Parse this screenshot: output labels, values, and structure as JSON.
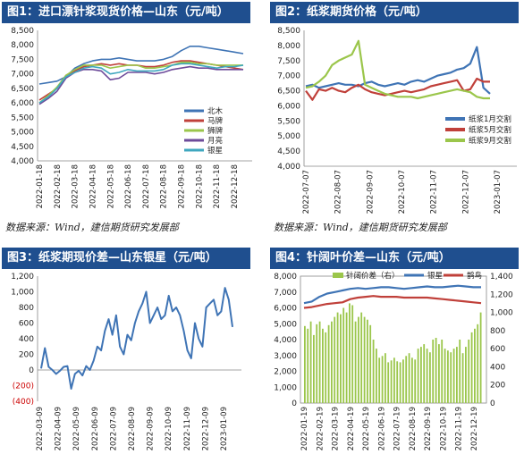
{
  "titles": {
    "p1": "图1：进口漂针浆现货价格—山东（元/吨）",
    "p2": "图2：纸浆期货价格（元/吨）",
    "p3": "图3：纸浆期现价差—山东银星（元/吨）",
    "p4": "图4：针阔叶价差—山东（元/吨）"
  },
  "sources": {
    "p1": "数据来源：Wind，建信期货研究发展部",
    "p2": "数据来源：Wind，建信期货研究发展部"
  },
  "colors": {
    "title_bg": "#1f4f8f",
    "blue": "#3f74b5",
    "red": "#c0403a",
    "green": "#9bc64b",
    "purple": "#6d4b9a",
    "teal": "#3fa7bf"
  },
  "chart_data": [
    {
      "id": "p1",
      "type": "line",
      "ylim": [
        4000,
        8500
      ],
      "yticks": [
        "4,000",
        "4,500",
        "5,000",
        "5,500",
        "6,000",
        "6,500",
        "7,000",
        "7,500",
        "8,000",
        "8,500"
      ],
      "xticks": [
        "2022-01-18",
        "2022-02-18",
        "2022-03-18",
        "2022-04-18",
        "2022-05-18",
        "2022-06-18",
        "2022-07-18",
        "2022-08-18",
        "2022-09-18",
        "2022-10-18",
        "2022-11-18",
        "2022-12-18"
      ],
      "series": [
        {
          "name": "北木",
          "color": "#3f74b5",
          "values": [
            6650,
            6700,
            6750,
            6900,
            7200,
            7350,
            7450,
            7500,
            7500,
            7550,
            7500,
            7450,
            7450,
            7450,
            7500,
            7600,
            7800,
            7950,
            7950,
            7900,
            7850,
            7800,
            7750,
            7700
          ]
        },
        {
          "name": "马牌",
          "color": "#c0403a",
          "values": [
            6100,
            6300,
            6500,
            6950,
            7100,
            7250,
            7300,
            7350,
            7300,
            7350,
            7300,
            7300,
            7250,
            7250,
            7300,
            7400,
            7450,
            7450,
            7400,
            7350,
            7300,
            7250,
            7200,
            7150
          ]
        },
        {
          "name": "狮牌",
          "color": "#9bc64b",
          "values": [
            6000,
            6250,
            6550,
            6950,
            7150,
            7300,
            7300,
            7300,
            7200,
            7250,
            7300,
            7300,
            7200,
            7200,
            7250,
            7300,
            7400,
            7400,
            7350,
            7350,
            7300,
            7300,
            7300,
            7300
          ]
        },
        {
          "name": "月亮",
          "color": "#6d4b9a",
          "values": [
            5950,
            6150,
            6400,
            6850,
            7050,
            7150,
            7150,
            7100,
            6800,
            6850,
            7050,
            7050,
            7050,
            7000,
            7050,
            7150,
            7200,
            7250,
            7200,
            7200,
            7150,
            7150,
            7150,
            7150
          ]
        },
        {
          "name": "银星",
          "color": "#3fa7bf",
          "values": [
            6000,
            6200,
            6500,
            6900,
            7050,
            7200,
            7250,
            7200,
            7000,
            7050,
            7150,
            7100,
            7100,
            7100,
            7150,
            7300,
            7350,
            7350,
            7300,
            7250,
            7200,
            7250,
            7250,
            7300
          ]
        }
      ]
    },
    {
      "id": "p2",
      "type": "line",
      "ylim": [
        4000,
        8500
      ],
      "yticks": [
        "4,000",
        "4,500",
        "5,000",
        "5,500",
        "6,000",
        "6,500",
        "7,000",
        "7,500",
        "8,000",
        "8,500"
      ],
      "xticks": [
        "2022-07-07",
        "2022-08-07",
        "2022-09-07",
        "2022-10-07",
        "2022-11-07",
        "2022-12-07",
        "2023-01-07"
      ],
      "series": [
        {
          "name": "纸浆1月交割",
          "color": "#3f74b5",
          "values": [
            6650,
            6700,
            6600,
            6650,
            6700,
            6750,
            6700,
            6700,
            6650,
            6750,
            6800,
            6700,
            6650,
            6700,
            6750,
            6700,
            6800,
            6850,
            6800,
            6900,
            7000,
            7050,
            7100,
            7200,
            7250,
            7400,
            7950,
            6600,
            6400
          ]
        },
        {
          "name": "纸浆5月交割",
          "color": "#c0403a",
          "values": [
            6500,
            6200,
            6550,
            6500,
            6600,
            6500,
            6450,
            6600,
            6700,
            6550,
            6450,
            6400,
            6350,
            6400,
            6450,
            6500,
            6450,
            6500,
            6550,
            6650,
            6700,
            6750,
            6800,
            6850,
            6500,
            6550,
            6900,
            6800,
            6800
          ]
        },
        {
          "name": "纸浆9月交割",
          "color": "#9bc64b",
          "values": [
            6600,
            6650,
            6800,
            7000,
            7350,
            7500,
            7600,
            7700,
            8150,
            6700,
            6600,
            6500,
            6400,
            6350,
            6300,
            6300,
            6300,
            6250,
            6300,
            6350,
            6400,
            6450,
            6500,
            6550,
            6500,
            6450,
            6300,
            6250,
            6250
          ]
        }
      ]
    },
    {
      "id": "p3",
      "type": "line",
      "ylim": [
        -400,
        1200
      ],
      "yticks": [
        "(400)",
        "(200)",
        "0",
        "200",
        "400",
        "600",
        "800",
        "1,000",
        "1,200"
      ],
      "xticks": [
        "2022-03-09",
        "2022-04-09",
        "2022-05-09",
        "2022-06-09",
        "2022-07-09",
        "2022-08-09",
        "2022-09-09",
        "2022-10-09",
        "2022-11-09",
        "2022-12-09",
        "2023-01-09"
      ],
      "series": [
        {
          "name": "期现价差",
          "color": "#3f74b5",
          "values": [
            20,
            280,
            40,
            0,
            -50,
            -10,
            40,
            50,
            -240,
            -50,
            -10,
            -70,
            50,
            0,
            120,
            300,
            250,
            500,
            650,
            450,
            700,
            300,
            200,
            450,
            380,
            600,
            750,
            850,
            1000,
            600,
            700,
            800,
            650,
            700,
            950,
            750,
            800,
            700,
            500,
            250,
            150,
            600,
            400,
            300,
            800,
            850,
            900,
            700,
            750,
            1050,
            900,
            550
          ]
        }
      ]
    },
    {
      "id": "p4",
      "type": "bar+line",
      "ylim_left": [
        0,
        8000
      ],
      "ylim_right": [
        0,
        1400
      ],
      "yticks_left": [
        "0",
        "1,000",
        "2,000",
        "3,000",
        "4,000",
        "5,000",
        "6,000",
        "7,000",
        "8,000"
      ],
      "yticks_right": [
        "0",
        "200",
        "400",
        "600",
        "800",
        "1,000",
        "1,200",
        "1,400"
      ],
      "xticks": [
        "2022-01-19",
        "2022-02-19",
        "2022-03-19",
        "2022-04-19",
        "2022-05-19",
        "2022-06-19",
        "2022-07-19",
        "2022-08-19",
        "2022-09-19",
        "2022-10-19",
        "2022-11-19",
        "2022-12-19"
      ],
      "series": [
        {
          "name": "针阔价差（右）",
          "color": "#9bc64b",
          "values": [
            850,
            820,
            900,
            750,
            870,
            900,
            820,
            780,
            860,
            900,
            950,
            1000,
            980,
            1050,
            1000,
            1100,
            1080,
            900,
            950,
            1000,
            950,
            920,
            860,
            700,
            600,
            500,
            520,
            550,
            450,
            470,
            500,
            460,
            450,
            480,
            520,
            550,
            500,
            480,
            600,
            620,
            650,
            600,
            560,
            700,
            720,
            650,
            700,
            600,
            580,
            560,
            600,
            620,
            700,
            550,
            620,
            700,
            780,
            820,
            870,
            1000
          ]
        },
        {
          "name": "银星",
          "color": "#3f74b5",
          "values": [
            6300,
            6400,
            6700,
            6900,
            7000,
            7100,
            7200,
            7250,
            7200,
            7250,
            7300,
            7300,
            7250,
            7200,
            7250,
            7300,
            7350,
            7300,
            7300,
            7350,
            7400,
            7350,
            7300,
            7300
          ]
        },
        {
          "name": "鹊鸟",
          "color": "#c0403a",
          "values": [
            6000,
            6050,
            6150,
            6250,
            6300,
            6350,
            6550,
            6650,
            6700,
            6750,
            6700,
            6700,
            6700,
            6650,
            6650,
            6650,
            6650,
            6600,
            6550,
            6500,
            6450,
            6400,
            6350,
            6300
          ]
        }
      ]
    }
  ]
}
